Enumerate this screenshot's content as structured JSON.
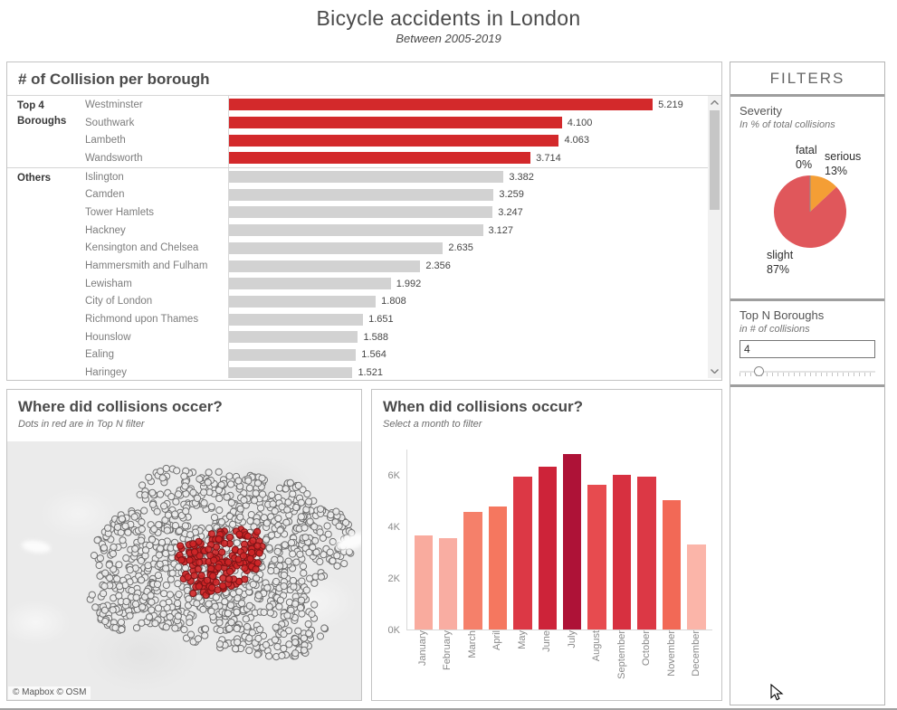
{
  "page": {
    "title": "Bicycle accidents in London",
    "subtitle": "Between 2005-2019"
  },
  "chart_data": [
    {
      "id": "collisions-per-borough",
      "type": "bar",
      "orientation": "horizontal",
      "title": "# of Collision per borough",
      "xlim": [
        0,
        5500
      ],
      "groups": [
        {
          "label": "Top 4 Boroughs",
          "series_color": "#d3292b",
          "rows": [
            {
              "name": "Westminster",
              "value": 5219,
              "label": "5.219"
            },
            {
              "name": "Southwark",
              "value": 4100,
              "label": "4.100"
            },
            {
              "name": "Lambeth",
              "value": 4063,
              "label": "4.063"
            },
            {
              "name": "Wandsworth",
              "value": 3714,
              "label": "3.714"
            }
          ]
        },
        {
          "label": "Others",
          "series_color": "#d2d2d2",
          "rows": [
            {
              "name": "Islington",
              "value": 3382,
              "label": "3.382"
            },
            {
              "name": "Camden",
              "value": 3259,
              "label": "3.259"
            },
            {
              "name": "Tower Hamlets",
              "value": 3247,
              "label": "3.247"
            },
            {
              "name": "Hackney",
              "value": 3127,
              "label": "3.127"
            },
            {
              "name": "Kensington and Chelsea",
              "value": 2635,
              "label": "2.635"
            },
            {
              "name": "Hammersmith and Fulham",
              "value": 2356,
              "label": "2.356"
            },
            {
              "name": "Lewisham",
              "value": 1992,
              "label": "1.992"
            },
            {
              "name": "City of London",
              "value": 1808,
              "label": "1.808"
            },
            {
              "name": "Richmond upon Thames",
              "value": 1651,
              "label": "1.651"
            },
            {
              "name": "Hounslow",
              "value": 1588,
              "label": "1.588"
            },
            {
              "name": "Ealing",
              "value": 1564,
              "label": "1.564"
            },
            {
              "name": "Haringey",
              "value": 1521,
              "label": "1.521"
            }
          ]
        }
      ]
    },
    {
      "id": "severity",
      "type": "pie",
      "title": "Severity",
      "subtitle": "In % of total collisions",
      "slices": [
        {
          "label": "fatal",
          "pct": 0,
          "pct_label": "0%",
          "color": "#8f8f8f"
        },
        {
          "label": "serious",
          "pct": 13,
          "pct_label": "13%",
          "color": "#f49e35"
        },
        {
          "label": "slight",
          "pct": 87,
          "pct_label": "87%",
          "color": "#e0575b"
        }
      ]
    },
    {
      "id": "collisions-by-month",
      "type": "bar",
      "title": "When did collisions occur?",
      "subtitle": "Select a month to filter",
      "categories": [
        "January",
        "February",
        "March",
        "April",
        "May",
        "June",
        "July",
        "August",
        "September",
        "October",
        "November",
        "December"
      ],
      "values": [
        3650,
        3550,
        4550,
        4750,
        5900,
        6300,
        6800,
        5600,
        6000,
        5900,
        5000,
        3300
      ],
      "bar_colors": [
        "#f9ab9e",
        "#f9ada2",
        "#f5806a",
        "#f5775f",
        "#dc3845",
        "#cd2339",
        "#ae1237",
        "#e74b4f",
        "#d73040",
        "#dc3845",
        "#f26956",
        "#fbb5a9"
      ],
      "yticks": [
        "0K",
        "2K",
        "4K",
        "6K"
      ],
      "ytick_values": [
        0,
        2000,
        4000,
        6000
      ],
      "ylim": [
        0,
        7000
      ]
    }
  ],
  "filters_panel": {
    "title": "FILTERS",
    "top_n": {
      "label": "Top N Boroughs",
      "subtitle": "in # of collisions",
      "input_value": "4"
    }
  },
  "map_panel": {
    "title": "Where did collisions occer?",
    "subtitle": "Dots in red are in Top N filter",
    "attribution": "© Mapbox © OSM",
    "dot_colors": {
      "other": "#ededed",
      "top_n": "#ce2527"
    },
    "gray_dot_count": 1150,
    "red_dot_count": 170
  },
  "icons": {
    "scroll_up": "chevron-up",
    "scroll_down": "chevron-down",
    "slider_handle": "slider-handle",
    "cursor": "mouse-pointer"
  }
}
